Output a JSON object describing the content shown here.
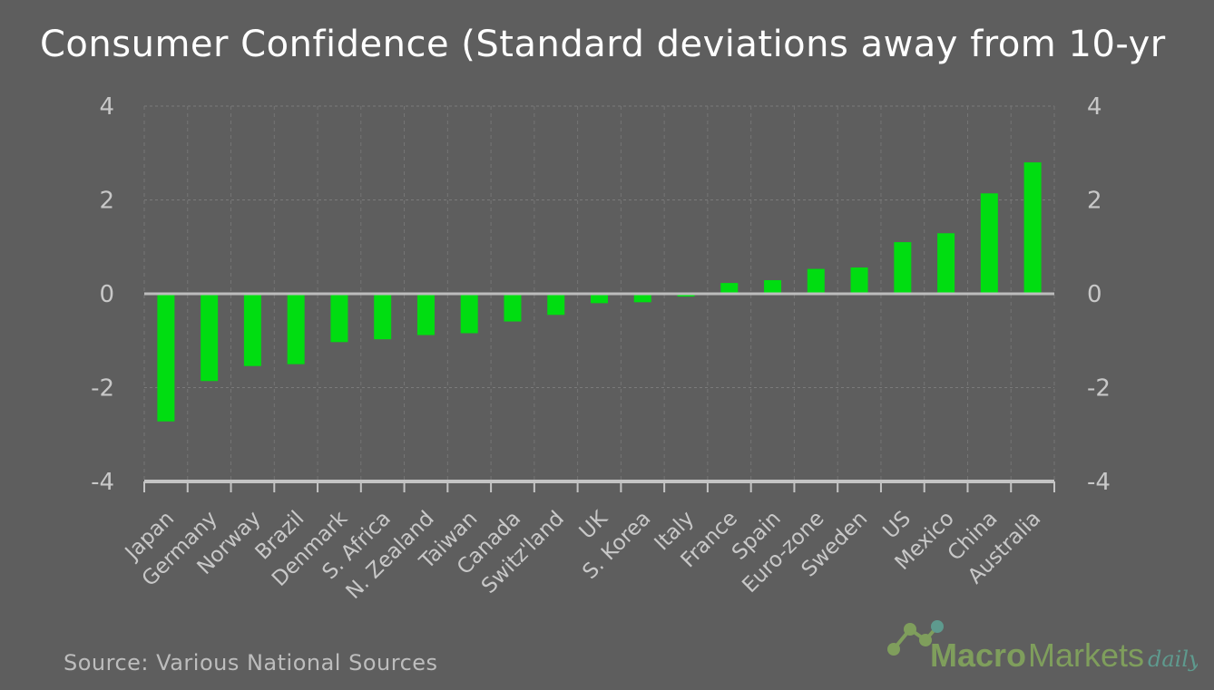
{
  "chart_data": {
    "type": "bar",
    "title": "Consumer Confidence (Standard deviations away from 10-yr",
    "categories": [
      "Japan",
      "Germany",
      "Norway",
      "Brazil",
      "Denmark",
      "S. Africa",
      "N. Zealand",
      "Taiwan",
      "Canada",
      "Switz'land",
      "UK",
      "S. Korea",
      "Italy",
      "France",
      "Spain",
      "Euro-zone",
      "Sweden",
      "US",
      "Mexico",
      "China",
      "Australia"
    ],
    "values": [
      -2.72,
      -1.86,
      -1.54,
      -1.5,
      -1.03,
      -0.97,
      -0.88,
      -0.84,
      -0.59,
      -0.45,
      -0.2,
      -0.18,
      -0.06,
      0.23,
      0.29,
      0.53,
      0.56,
      1.1,
      1.29,
      2.14,
      2.8
    ],
    "ylim": [
      -4,
      4
    ],
    "yticks": [
      "4",
      "2",
      "0",
      "-2",
      "-4"
    ],
    "ytick_values": [
      4,
      2,
      0,
      -2,
      -4
    ],
    "secondary_y_axis": true,
    "grid": true,
    "bar_color": "#00dd11",
    "background_color": "#5e5e5e"
  },
  "source": "Source: Various National Sources",
  "logo": {
    "text_macro": "Macro",
    "text_markets": "Markets",
    "text_daily": "daily"
  }
}
